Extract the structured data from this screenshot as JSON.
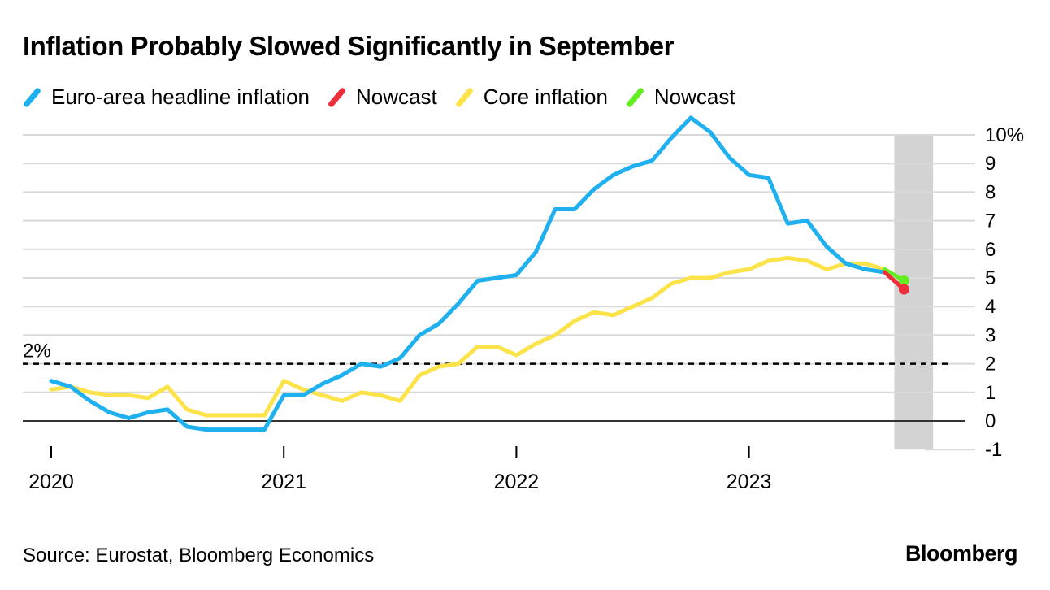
{
  "header": {
    "title": "Inflation Probably Slowed Significantly in September"
  },
  "legend": {
    "items": [
      {
        "label": "Euro-area headline inflation",
        "color": "#1fb0f0"
      },
      {
        "label": "Nowcast",
        "color": "#ee2e3a"
      },
      {
        "label": "Core inflation",
        "color": "#fce34a"
      },
      {
        "label": "Nowcast",
        "color": "#64ee22"
      }
    ]
  },
  "footer": {
    "source": "Source: Eurostat, Bloomberg Economics",
    "brand": "Bloomberg"
  },
  "chart_data": {
    "type": "line",
    "title": "Inflation Probably Slowed Significantly in September",
    "xlabel": "",
    "ylabel": "",
    "ylim": [
      -1,
      10
    ],
    "y_ticks": [
      10,
      9,
      8,
      7,
      6,
      5,
      4,
      3,
      2,
      1,
      0,
      -1
    ],
    "y_tick_labels": [
      "10%",
      "9",
      "8",
      "7",
      "6",
      "5",
      "4",
      "3",
      "2",
      "1",
      "0",
      "-1"
    ],
    "x_tick_labels": [
      "2020",
      "2021",
      "2022",
      "2023"
    ],
    "x_start": "2020-01",
    "reference_line": {
      "value": 2,
      "label": "2%"
    },
    "shaded_period": {
      "from_index": 43.5,
      "to_index": 45.5
    },
    "series": [
      {
        "name": "Euro-area headline inflation",
        "color": "#1fb0f0",
        "values": [
          1.4,
          1.2,
          0.7,
          0.3,
          0.1,
          0.3,
          0.4,
          -0.2,
          -0.3,
          -0.3,
          -0.3,
          -0.3,
          0.9,
          0.9,
          1.3,
          1.6,
          2.0,
          1.9,
          2.2,
          3.0,
          3.4,
          4.1,
          4.9,
          5.0,
          5.1,
          5.9,
          7.4,
          7.4,
          8.1,
          8.6,
          8.9,
          9.1,
          9.9,
          10.6,
          10.1,
          9.2,
          8.6,
          8.5,
          6.9,
          7.0,
          6.1,
          5.5,
          5.3,
          5.2
        ]
      },
      {
        "name": "Nowcast",
        "color": "#ee2e3a",
        "start_index": 43,
        "values": [
          5.2,
          4.6
        ]
      },
      {
        "name": "Core inflation",
        "color": "#fce34a",
        "values": [
          1.1,
          1.2,
          1.0,
          0.9,
          0.9,
          0.8,
          1.2,
          0.4,
          0.2,
          0.2,
          0.2,
          0.2,
          1.4,
          1.1,
          0.9,
          0.7,
          1.0,
          0.9,
          0.7,
          1.6,
          1.9,
          2.0,
          2.6,
          2.6,
          2.3,
          2.7,
          3.0,
          3.5,
          3.8,
          3.7,
          4.0,
          4.3,
          4.8,
          5.0,
          5.0,
          5.2,
          5.3,
          5.6,
          5.7,
          5.6,
          5.3,
          5.5,
          5.5,
          5.3
        ]
      },
      {
        "name": "Nowcast",
        "color": "#64ee22",
        "start_index": 43,
        "values": [
          5.3,
          4.9
        ]
      }
    ]
  }
}
